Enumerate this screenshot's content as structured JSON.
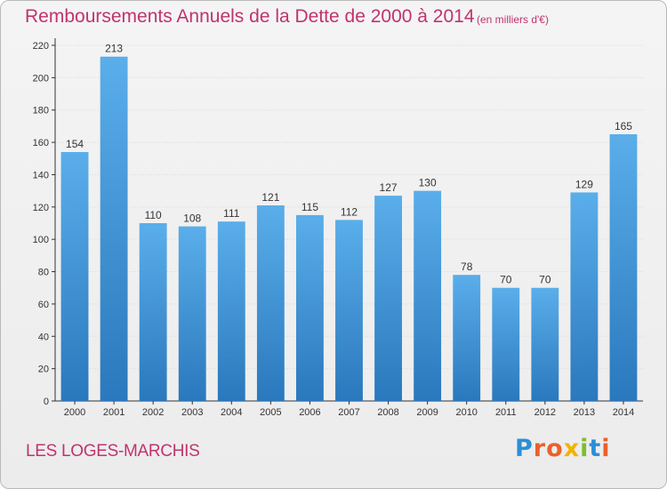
{
  "title": "Remboursements Annuels de la Dette de 2000 à 2014",
  "subtitle": "(en milliers d'€)",
  "commune": "LES LOGES-MARCHIS",
  "logo": {
    "text": "Proxiti",
    "letter_colors": [
      "#2a8fd6",
      "#e8612c",
      "#e8612c",
      "#f0b400",
      "#7bbf2a",
      "#2a8fd6",
      "#e8612c"
    ]
  },
  "colors": {
    "bar_top": "#5aaeea",
    "bar_bottom": "#2a78bd",
    "title": "#c0336e",
    "axis": "#333333",
    "grid": "#d8d8d8"
  },
  "chart_data": {
    "type": "bar",
    "categories": [
      "2000",
      "2001",
      "2002",
      "2003",
      "2004",
      "2005",
      "2006",
      "2007",
      "2008",
      "2009",
      "2010",
      "2011",
      "2012",
      "2013",
      "2014"
    ],
    "values": [
      154,
      213,
      110,
      108,
      111,
      121,
      115,
      112,
      127,
      130,
      78,
      70,
      70,
      129,
      165
    ],
    "value_labels": [
      "154",
      "213",
      "110",
      "108",
      "111",
      "121",
      "115",
      "112",
      "127",
      "130",
      "78",
      "70",
      "70",
      "129",
      "165"
    ],
    "yticks": [
      "0",
      "20",
      "40",
      "60",
      "80",
      "100",
      "120",
      "140",
      "160",
      "180",
      "200",
      "220"
    ],
    "ylim": [
      0,
      220
    ],
    "grid": true
  }
}
